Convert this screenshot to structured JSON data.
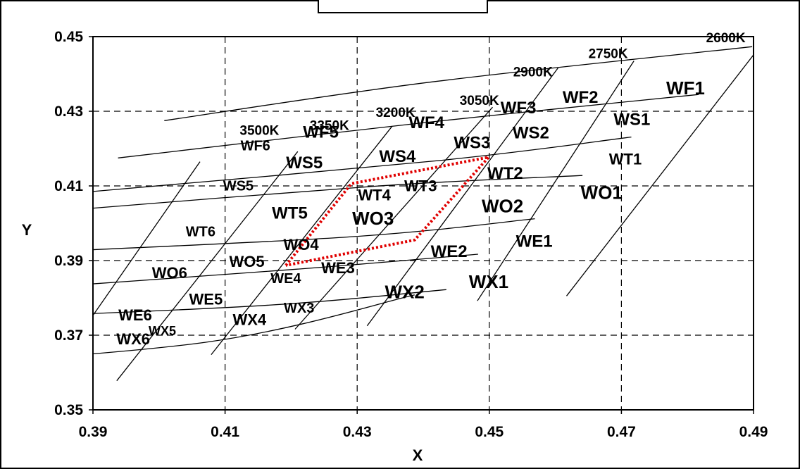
{
  "chart_data": {
    "type": "line",
    "title": "",
    "xlabel": "X",
    "ylabel": "Y",
    "xlim": [
      0.39,
      0.49
    ],
    "ylim": [
      0.35,
      0.45
    ],
    "x_ticks": [
      "0.39",
      "0.41",
      "0.43",
      "0.45",
      "0.47",
      "0.49"
    ],
    "y_ticks": [
      "0.35",
      "0.37",
      "0.39",
      "0.41",
      "0.43",
      "0.45"
    ],
    "grid": "dashed",
    "cct_lines": [
      {
        "label": "2600K",
        "points": [
          [
            0.4918,
            0.4492
          ],
          [
            0.4617,
            0.3805
          ]
        ]
      },
      {
        "label": "2750K",
        "points": [
          [
            0.4719,
            0.4435
          ],
          [
            0.4482,
            0.3792
          ]
        ]
      },
      {
        "label": "2900K",
        "points": [
          [
            0.4604,
            0.4416
          ],
          [
            0.4315,
            0.3725
          ]
        ]
      },
      {
        "label": "3050K",
        "points": [
          [
            0.4505,
            0.4311
          ],
          [
            0.4206,
            0.3716
          ]
        ]
      },
      {
        "label": "3200K",
        "points": [
          [
            0.4353,
            0.426
          ],
          [
            0.4079,
            0.3648
          ]
        ]
      },
      {
        "label": "3350K",
        "points": [
          [
            0.421,
            0.4192
          ],
          [
            0.3936,
            0.3578
          ]
        ]
      },
      {
        "label": "3500K",
        "points": [
          [
            0.4062,
            0.4165
          ],
          [
            0.3789,
            0.3471
          ]
        ]
      }
    ],
    "isolines": [
      {
        "points": [
          [
            0.4008,
            0.4275
          ],
          [
            0.441,
            0.4378
          ],
          [
            0.4898,
            0.4473
          ]
        ]
      },
      {
        "points": [
          [
            0.3938,
            0.4175
          ],
          [
            0.4404,
            0.427
          ],
          [
            0.4817,
            0.4345
          ]
        ]
      },
      {
        "points": [
          [
            0.388,
            0.4082
          ],
          [
            0.4424,
            0.4168
          ],
          [
            0.4715,
            0.4231
          ]
        ]
      },
      {
        "points": [
          [
            0.38,
            0.4026
          ],
          [
            0.4326,
            0.4099
          ],
          [
            0.4641,
            0.4128
          ]
        ]
      },
      {
        "points": [
          [
            0.3734,
            0.3916
          ],
          [
            0.4285,
            0.3963
          ],
          [
            0.4569,
            0.4012
          ]
        ]
      },
      {
        "points": [
          [
            0.3678,
            0.381
          ],
          [
            0.4195,
            0.3875
          ],
          [
            0.4483,
            0.3917
          ]
        ]
      },
      {
        "points": [
          [
            0.3595,
            0.3736
          ],
          [
            0.4142,
            0.3778
          ],
          [
            0.4435,
            0.3822
          ]
        ]
      },
      {
        "points": [
          [
            0.3553,
            0.3605
          ],
          [
            0.407,
            0.3681
          ],
          [
            0.4387,
            0.3808
          ]
        ]
      }
    ],
    "highlight_region": {
      "color": "#e00000",
      "points": [
        [
          0.4192,
          0.3887
        ],
        [
          0.4291,
          0.4106
        ],
        [
          0.4499,
          0.4177
        ],
        [
          0.4387,
          0.3955
        ],
        [
          0.4192,
          0.3887
        ]
      ]
    },
    "bin_labels": [
      {
        "text": "WF1",
        "x": 0.4797,
        "y": 0.4345
      },
      {
        "text": "WF2",
        "x": 0.4638,
        "y": 0.4323
      },
      {
        "text": "WF3",
        "x": 0.4544,
        "y": 0.4294
      },
      {
        "text": "WF4",
        "x": 0.4405,
        "y": 0.4255
      },
      {
        "text": "WF5",
        "x": 0.4245,
        "y": 0.4229
      },
      {
        "text": "WF6",
        "x": 0.4146,
        "y": 0.4195
      },
      {
        "text": "WS1",
        "x": 0.4716,
        "y": 0.4263
      },
      {
        "text": "WS2",
        "x": 0.4563,
        "y": 0.4227
      },
      {
        "text": "WS3",
        "x": 0.4474,
        "y": 0.4201
      },
      {
        "text": "WS4",
        "x": 0.4361,
        "y": 0.4164
      },
      {
        "text": "WS5",
        "x": 0.422,
        "y": 0.4147
      },
      {
        "text": "WS5",
        "x": 0.412,
        "y": 0.4088
      },
      {
        "text": "WT1",
        "x": 0.4706,
        "y": 0.4158
      },
      {
        "text": "WT2",
        "x": 0.4524,
        "y": 0.4119
      },
      {
        "text": "WT3",
        "x": 0.4396,
        "y": 0.4086
      },
      {
        "text": "WT4",
        "x": 0.4326,
        "y": 0.4061
      },
      {
        "text": "WT5",
        "x": 0.4198,
        "y": 0.4012
      },
      {
        "text": "WT6",
        "x": 0.4063,
        "y": 0.3965
      },
      {
        "text": "WO1",
        "x": 0.467,
        "y": 0.4065
      },
      {
        "text": "WO2",
        "x": 0.452,
        "y": 0.4029
      },
      {
        "text": "WO3",
        "x": 0.4324,
        "y": 0.3996
      },
      {
        "text": "WO4",
        "x": 0.4215,
        "y": 0.3928
      },
      {
        "text": "WO5",
        "x": 0.4133,
        "y": 0.3883
      },
      {
        "text": "WO6",
        "x": 0.4016,
        "y": 0.3853
      },
      {
        "text": "WE1",
        "x": 0.4568,
        "y": 0.3937
      },
      {
        "text": "WE2",
        "x": 0.4439,
        "y": 0.3909
      },
      {
        "text": "WE3",
        "x": 0.4271,
        "y": 0.3866
      },
      {
        "text": "WE4",
        "x": 0.4192,
        "y": 0.384
      },
      {
        "text": "WE5",
        "x": 0.4071,
        "y": 0.3782
      },
      {
        "text": "WE6",
        "x": 0.3964,
        "y": 0.374
      },
      {
        "text": "WX1",
        "x": 0.4499,
        "y": 0.3826
      },
      {
        "text": "WX2",
        "x": 0.4372,
        "y": 0.3799
      },
      {
        "text": "WX3",
        "x": 0.4212,
        "y": 0.376
      },
      {
        "text": "WX4",
        "x": 0.4137,
        "y": 0.3727
      },
      {
        "text": "WX5",
        "x": 0.4005,
        "y": 0.37
      },
      {
        "text": "WX6",
        "x": 0.3961,
        "y": 0.3675
      }
    ],
    "bin_label_sizes": [
      26,
      24,
      24,
      24,
      24,
      20,
      24,
      24,
      24,
      24,
      24,
      20,
      22,
      24,
      22,
      22,
      24,
      20,
      26,
      26,
      26,
      22,
      22,
      22,
      24,
      24,
      22,
      20,
      22,
      22,
      26,
      26,
      20,
      22,
      18,
      22
    ],
    "cct_labels": [
      {
        "text": "2600K",
        "x": 0.4858,
        "y": 0.4485
      },
      {
        "text": "2750K",
        "x": 0.468,
        "y": 0.4442
      },
      {
        "text": "2900K",
        "x": 0.4566,
        "y": 0.4393
      },
      {
        "text": "3050K",
        "x": 0.4485,
        "y": 0.4317
      },
      {
        "text": "3200K",
        "x": 0.4358,
        "y": 0.4285
      },
      {
        "text": "3350K",
        "x": 0.4258,
        "y": 0.425
      },
      {
        "text": "3500K",
        "x": 0.4152,
        "y": 0.4237
      }
    ]
  }
}
